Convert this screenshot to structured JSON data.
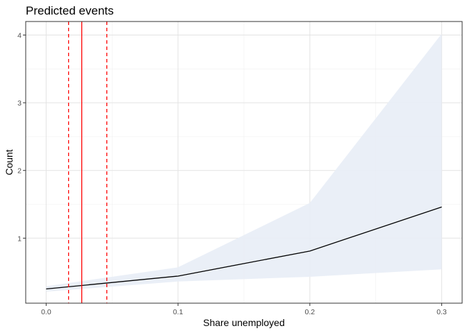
{
  "chart_data": {
    "type": "line",
    "title": "Predicted events",
    "xlabel": "Share unemployed",
    "ylabel": "Count",
    "xlim": [
      -0.0155,
      0.3155
    ],
    "ylim": [
      0.04,
      4.2
    ],
    "x_ticks": [
      0.0,
      0.1,
      0.2,
      0.3
    ],
    "x_tick_labels": [
      "0.0",
      "0.1",
      "0.2",
      "0.3"
    ],
    "y_ticks": [
      1,
      2,
      3,
      4
    ],
    "y_tick_labels": [
      "1",
      "2",
      "3",
      "4"
    ],
    "grid": true,
    "series": [
      {
        "x": [
          0.0,
          0.1,
          0.2,
          0.3
        ],
        "y": [
          0.25,
          0.44,
          0.81,
          1.46
        ],
        "ci_lower": [
          0.21,
          0.36,
          0.43,
          0.54
        ],
        "ci_upper": [
          0.29,
          0.57,
          1.52,
          4.02
        ],
        "line_color": "#000000",
        "ribbon_color": "#e8edf6"
      }
    ],
    "reference_lines": [
      {
        "x": 0.027,
        "style": "solid",
        "color": "#ff0000"
      },
      {
        "x": 0.017,
        "style": "dashed",
        "color": "#ff0000"
      },
      {
        "x": 0.046,
        "style": "dashed",
        "color": "#ff0000"
      }
    ]
  }
}
